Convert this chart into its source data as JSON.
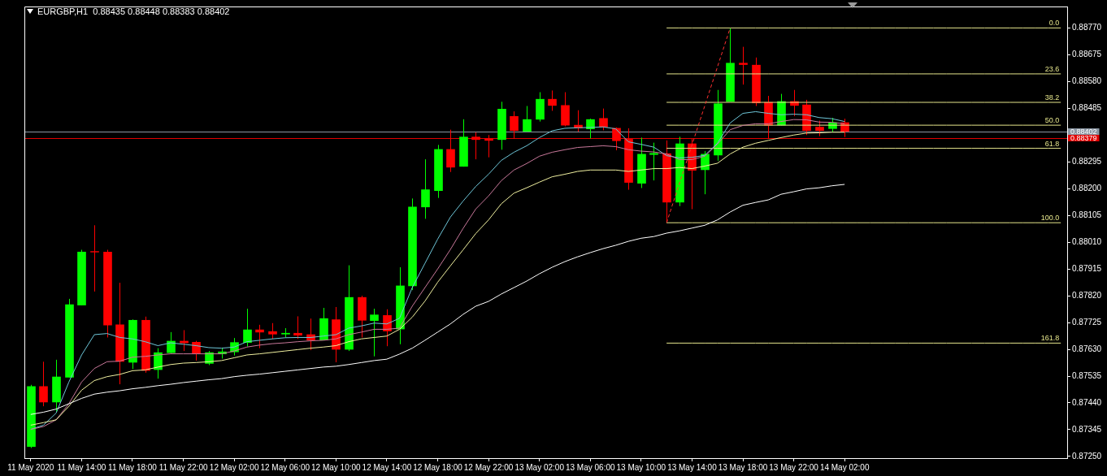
{
  "chart_data": {
    "type": "candlestick",
    "title": "EURGBP,H1  0.88435 0.88448 0.88383 0.88402",
    "categories": [
      "11 May 2020",
      null,
      null,
      null,
      "11 May 14:00",
      null,
      null,
      null,
      "11 May 18:00",
      null,
      null,
      null,
      "11 May 22:00",
      null,
      null,
      null,
      "12 May 02:00",
      null,
      null,
      null,
      "12 May 06:00",
      null,
      null,
      null,
      "12 May 10:00",
      null,
      null,
      null,
      "12 May 14:00",
      null,
      null,
      null,
      "12 May 18:00",
      null,
      null,
      null,
      "12 May 22:00",
      null,
      null,
      null,
      "13 May 02:00",
      null,
      null,
      null,
      "13 May 06:00",
      null,
      null,
      null,
      "13 May 10:00",
      null,
      null,
      null,
      "13 May 14:00",
      null,
      null,
      null,
      "13 May 18:00",
      null,
      null,
      null,
      "13 May 22:00",
      null,
      null,
      null,
      "14 May 02:00",
      null,
      null,
      null,
      null,
      null,
      null,
      null,
      null,
      null,
      null,
      null,
      null,
      null,
      null,
      null,
      null,
      null
    ],
    "ohlc": [
      [
        0.87284,
        0.87504,
        0.8728,
        0.87499
      ],
      [
        0.87499,
        0.87586,
        0.87428,
        0.87442
      ],
      [
        0.87442,
        0.87593,
        0.87409,
        0.87533
      ],
      [
        0.8753,
        0.87809,
        0.8753,
        0.87789
      ],
      [
        0.87786,
        0.87983,
        0.87786,
        0.87976
      ],
      [
        0.87978,
        0.8807,
        0.87835,
        0.87974
      ],
      [
        0.87976,
        0.87983,
        0.87672,
        0.87715
      ],
      [
        0.87718,
        0.87866,
        0.87506,
        0.87586
      ],
      [
        0.87583,
        0.87736,
        0.8756,
        0.87734
      ],
      [
        0.87734,
        0.87746,
        0.87547,
        0.87554
      ],
      [
        0.87557,
        0.87634,
        0.87526,
        0.87619
      ],
      [
        0.87617,
        0.87691,
        0.87617,
        0.8766
      ],
      [
        0.8766,
        0.87698,
        0.87624,
        0.87652
      ],
      [
        0.87656,
        0.8766,
        0.8759,
        0.87614
      ],
      [
        0.87579,
        0.87624,
        0.87574,
        0.87619
      ],
      [
        0.87613,
        0.87636,
        0.87597,
        0.87622
      ],
      [
        0.8762,
        0.8767,
        0.87608,
        0.87655
      ],
      [
        0.87653,
        0.87774,
        0.8764,
        0.877
      ],
      [
        0.877,
        0.87717,
        0.87634,
        0.8769
      ],
      [
        0.87694,
        0.87723,
        0.87667,
        0.87683
      ],
      [
        0.87683,
        0.87705,
        0.87672,
        0.87688
      ],
      [
        0.87688,
        0.87747,
        0.87667,
        0.87679
      ],
      [
        0.87683,
        0.87739,
        0.87627,
        0.87662
      ],
      [
        0.87662,
        0.87777,
        0.87662,
        0.8774
      ],
      [
        0.87736,
        0.8778,
        0.87584,
        0.87629
      ],
      [
        0.87629,
        0.87928,
        0.87624,
        0.87815
      ],
      [
        0.87815,
        0.8782,
        0.87672,
        0.87732
      ],
      [
        0.87731,
        0.87774,
        0.87605,
        0.87753
      ],
      [
        0.87751,
        0.87772,
        0.87641,
        0.87694
      ],
      [
        0.87701,
        0.87921,
        0.87648,
        0.87856
      ],
      [
        0.87854,
        0.88165,
        0.8784,
        0.88136
      ],
      [
        0.88134,
        0.88304,
        0.88093,
        0.88197
      ],
      [
        0.88192,
        0.88355,
        0.88167,
        0.8834
      ],
      [
        0.8834,
        0.88409,
        0.88259,
        0.88275
      ],
      [
        0.88278,
        0.88446,
        0.88278,
        0.88384
      ],
      [
        0.88384,
        0.884,
        0.88304,
        0.88373
      ],
      [
        0.88378,
        0.8839,
        0.88311,
        0.8837
      ],
      [
        0.88373,
        0.88508,
        0.88338,
        0.88483
      ],
      [
        0.88457,
        0.88474,
        0.88378,
        0.88405
      ],
      [
        0.88402,
        0.88493,
        0.88402,
        0.88446
      ],
      [
        0.88445,
        0.88542,
        0.88438,
        0.88518
      ],
      [
        0.88518,
        0.88548,
        0.88476,
        0.88494
      ],
      [
        0.88496,
        0.88542,
        0.88421,
        0.88424
      ],
      [
        0.88426,
        0.88478,
        0.88402,
        0.88414
      ],
      [
        0.88411,
        0.88448,
        0.88378,
        0.88446
      ],
      [
        0.8845,
        0.88484,
        0.88407,
        0.88417
      ],
      [
        0.88415,
        0.88417,
        0.88336,
        0.88369
      ],
      [
        0.88376,
        0.88414,
        0.88196,
        0.88221
      ],
      [
        0.88218,
        0.88381,
        0.88202,
        0.88323
      ],
      [
        0.8832,
        0.88363,
        0.88229,
        0.88326
      ],
      [
        0.88325,
        0.88371,
        0.88079,
        0.88151
      ],
      [
        0.88151,
        0.88384,
        0.88138,
        0.8836
      ],
      [
        0.8836,
        0.88376,
        0.88127,
        0.88264
      ],
      [
        0.88266,
        0.88333,
        0.8818,
        0.88323
      ],
      [
        0.88318,
        0.8855,
        0.88299,
        0.88502
      ],
      [
        0.88508,
        0.8877,
        0.88508,
        0.88646
      ],
      [
        0.88646,
        0.88703,
        0.88569,
        0.88639
      ],
      [
        0.88639,
        0.88665,
        0.88493,
        0.88503
      ],
      [
        0.88507,
        0.88529,
        0.88376,
        0.88424
      ],
      [
        0.88424,
        0.88536,
        0.88424,
        0.8851
      ],
      [
        0.8851,
        0.8855,
        0.88457,
        0.88494
      ],
      [
        0.88498,
        0.88515,
        0.8839,
        0.88405
      ],
      [
        0.88419,
        0.88441,
        0.88386,
        0.88405
      ],
      [
        0.88412,
        0.88451,
        0.884,
        0.88435
      ],
      [
        0.88435,
        0.88448,
        0.88383,
        0.88402
      ],
      null,
      null,
      null,
      null,
      null,
      null,
      null,
      null,
      null,
      null,
      null,
      null,
      null,
      null,
      null,
      null,
      null
    ],
    "colors": [
      "#00ff00",
      "#ff0000",
      "#00ff00",
      "#00ff00",
      "#00ff00",
      "#ff0000",
      "#ff0000",
      "#ff0000",
      "#00ff00",
      "#ff0000",
      "#00ff00",
      "#00ff00",
      "#ff0000",
      "#ff0000",
      "#00ff00",
      "#00ff00",
      "#00ff00",
      "#00ff00",
      "#ff0000",
      "#ff0000",
      "#00ff00",
      "#ff0000",
      "#ff0000",
      "#00ff00",
      "#ff0000",
      "#00ff00",
      "#ff0000",
      "#00ff00",
      "#ff0000",
      "#00ff00",
      "#00ff00",
      "#00ff00",
      "#00ff00",
      "#ff0000",
      "#00ff00",
      "#ff0000",
      "#ff0000",
      "#00ff00",
      "#ff0000",
      "#00ff00",
      "#00ff00",
      "#ff0000",
      "#ff0000",
      "#ff0000",
      "#00ff00",
      "#ff0000",
      "#ff0000",
      "#ff0000",
      "#00ff00",
      "#00ff00",
      "#ff0000",
      "#00ff00",
      "#ff0000",
      "#00ff00",
      "#00ff00",
      "#00ff00",
      "#ff0000",
      "#ff0000",
      "#ff0000",
      "#00ff00",
      "#ff0000",
      "#ff0000",
      "#ff0000",
      "#00ff00",
      "#ff0000",
      null,
      null,
      null,
      null,
      null,
      null,
      null,
      null,
      null,
      null,
      null,
      null,
      null,
      null,
      null,
      null,
      null
    ],
    "series": [
      {
        "type": "line",
        "color": "#ffffff",
        "values": [
          0.87399,
          0.87407,
          0.87418,
          0.87437,
          0.87456,
          0.87471,
          0.87478,
          0.87483,
          0.8749,
          0.87495,
          0.87501,
          0.87506,
          0.87512,
          0.87517,
          0.87522,
          0.87526,
          0.87533,
          0.87538,
          0.87542,
          0.87547,
          0.87552,
          0.87557,
          0.87562,
          0.87567,
          0.8757,
          0.87576,
          0.87583,
          0.8759,
          0.87595,
          0.87613,
          0.87634,
          0.87662,
          0.87691,
          0.8772,
          0.87754,
          0.87783,
          0.878,
          0.87826,
          0.87849,
          0.87872,
          0.87898,
          0.87921,
          0.87941,
          0.87958,
          0.87973,
          0.87987,
          0.87999,
          0.88013,
          0.88024,
          0.8803,
          0.88042,
          0.8805,
          0.8806,
          0.8807,
          0.88089,
          0.88117,
          0.88141,
          0.88151,
          0.8816,
          0.8818,
          0.88189,
          0.88199,
          0.88203,
          0.8821,
          0.88215,
          null,
          null,
          null,
          null,
          null,
          null,
          null,
          null,
          null,
          null,
          null,
          null,
          null,
          null,
          null,
          null,
          null
        ]
      },
      {
        "type": "line",
        "color": "#f0f0a0",
        "values": [
          0.87361,
          0.8737,
          0.8738,
          0.87428,
          0.87485,
          0.87519,
          0.87533,
          0.87541,
          0.87554,
          0.87557,
          0.87567,
          0.87576,
          0.87581,
          0.87583,
          0.87586,
          0.8759,
          0.876,
          0.8761,
          0.87614,
          0.87619,
          0.87624,
          0.87629,
          0.87634,
          0.87638,
          0.87643,
          0.87657,
          0.87667,
          0.87672,
          0.87677,
          0.87701,
          0.87744,
          0.87801,
          0.87868,
          0.87926,
          0.87983,
          0.88041,
          0.88089,
          0.88146,
          0.88184,
          0.88203,
          0.88223,
          0.88242,
          0.88251,
          0.88261,
          0.88266,
          0.88266,
          0.88266,
          0.88261,
          0.88266,
          0.88271,
          0.88271,
          0.88275,
          0.88271,
          0.8828,
          0.8829,
          0.88323,
          0.88347,
          0.88361,
          0.88371,
          0.88381,
          0.8839,
          0.88397,
          0.88398,
          0.884,
          0.884,
          null,
          null,
          null,
          null,
          null,
          null,
          null,
          null,
          null,
          null,
          null,
          null,
          null,
          null,
          null,
          null,
          null
        ]
      },
      {
        "type": "line",
        "color": "#c8789a",
        "values": [
          0.87346,
          0.87356,
          0.8738,
          0.87437,
          0.87514,
          0.87562,
          0.87586,
          0.87588,
          0.87602,
          0.87605,
          0.8761,
          0.87614,
          0.87614,
          0.87614,
          0.87614,
          0.87614,
          0.87624,
          0.87638,
          0.87645,
          0.8765,
          0.87653,
          0.87657,
          0.8766,
          0.87662,
          0.87667,
          0.87682,
          0.87691,
          0.87701,
          0.87701,
          0.87705,
          0.87783,
          0.87849,
          0.87915,
          0.87984,
          0.88059,
          0.88128,
          0.88174,
          0.88228,
          0.88266,
          0.88289,
          0.88315,
          0.88329,
          0.88338,
          0.88346,
          0.88349,
          0.88352,
          0.88349,
          0.88338,
          0.88333,
          0.8833,
          0.88323,
          0.88303,
          0.88303,
          0.88315,
          0.88358,
          0.88409,
          0.88424,
          0.8843,
          0.8843,
          0.88438,
          0.88445,
          0.88444,
          0.88436,
          0.88435,
          0.8843,
          null,
          null,
          null,
          null,
          null,
          null,
          null,
          null,
          null,
          null,
          null,
          null,
          null,
          null,
          null,
          null,
          null
        ]
      },
      {
        "type": "line",
        "color": "#6ec6d8",
        "values": [
          0.87346,
          0.87361,
          0.87404,
          0.87514,
          0.8761,
          0.87682,
          0.87686,
          0.87672,
          0.87667,
          0.87657,
          0.87643,
          0.87653,
          0.87648,
          0.87643,
          0.87636,
          0.87634,
          0.87638,
          0.87657,
          0.87662,
          0.87667,
          0.87671,
          0.87672,
          0.87672,
          0.87677,
          0.87682,
          0.87705,
          0.87713,
          0.87723,
          0.8772,
          0.8774,
          0.87849,
          0.87935,
          0.88021,
          0.88099,
          0.88156,
          0.88208,
          0.88251,
          0.883,
          0.88329,
          0.88352,
          0.88381,
          0.88405,
          0.88414,
          0.88416,
          0.88417,
          0.88419,
          0.88412,
          0.88366,
          0.88357,
          0.88347,
          0.88317,
          0.88309,
          0.88311,
          0.88318,
          0.88361,
          0.88433,
          0.88467,
          0.88473,
          0.88467,
          0.88462,
          0.88464,
          0.88462,
          0.88452,
          0.88448,
          0.88438,
          null,
          null,
          null,
          null,
          null,
          null,
          null,
          null,
          null,
          null,
          null,
          null,
          null,
          null,
          null,
          null,
          null
        ]
      },
      {
        "type": "line",
        "color": "#ff3030",
        "line_style": "dashed",
        "values": [
          null,
          null,
          null,
          null,
          null,
          null,
          null,
          null,
          null,
          null,
          null,
          null,
          null,
          null,
          null,
          null,
          null,
          null,
          null,
          null,
          null,
          null,
          null,
          null,
          null,
          null,
          null,
          null,
          null,
          null,
          null,
          null,
          null,
          null,
          null,
          null,
          null,
          null,
          null,
          null,
          null,
          null,
          null,
          null,
          null,
          null,
          null,
          null,
          null,
          null,
          0.88079,
          null,
          null,
          null,
          null,
          0.8877,
          null,
          null,
          null,
          null,
          null,
          null,
          null,
          null,
          null,
          null,
          null,
          null,
          null,
          null,
          null,
          null,
          null,
          null,
          null,
          null,
          null,
          null,
          null,
          null,
          null,
          null
        ]
      },
      {
        "type": "line",
        "name": "0.0",
        "color": "#e6e68c",
        "values": [
          null,
          null,
          null,
          null,
          null,
          null,
          null,
          null,
          null,
          null,
          null,
          null,
          null,
          null,
          null,
          null,
          null,
          null,
          null,
          null,
          null,
          null,
          null,
          null,
          null,
          null,
          null,
          null,
          null,
          null,
          null,
          null,
          null,
          null,
          null,
          null,
          null,
          null,
          null,
          null,
          null,
          null,
          null,
          null,
          null,
          null,
          null,
          null,
          null,
          null,
          0.8877,
          0.8877,
          0.8877,
          0.8877,
          0.8877,
          0.8877,
          0.8877,
          0.8877,
          0.8877,
          0.8877,
          0.8877,
          0.8877,
          0.8877,
          0.8877,
          0.8877,
          0.8877,
          0.8877,
          0.8877,
          0.8877,
          0.8877,
          0.8877,
          0.8877,
          0.8877,
          0.8877,
          0.8877,
          0.8877,
          0.8877,
          0.8877,
          0.8877,
          0.8877,
          0.8877,
          0.8877
        ]
      },
      {
        "type": "line",
        "name": "23.6",
        "color": "#e6e68c",
        "values": [
          null,
          null,
          null,
          null,
          null,
          null,
          null,
          null,
          null,
          null,
          null,
          null,
          null,
          null,
          null,
          null,
          null,
          null,
          null,
          null,
          null,
          null,
          null,
          null,
          null,
          null,
          null,
          null,
          null,
          null,
          null,
          null,
          null,
          null,
          null,
          null,
          null,
          null,
          null,
          null,
          null,
          null,
          null,
          null,
          null,
          null,
          null,
          null,
          null,
          null,
          0.88607,
          0.88607,
          0.88607,
          0.88607,
          0.88607,
          0.88607,
          0.88607,
          0.88607,
          0.88607,
          0.88607,
          0.88607,
          0.88607,
          0.88607,
          0.88607,
          0.88607,
          0.88607,
          0.88607,
          0.88607,
          0.88607,
          0.88607,
          0.88607,
          0.88607,
          0.88607,
          0.88607,
          0.88607,
          0.88607,
          0.88607,
          0.88607,
          0.88607,
          0.88607,
          0.88607,
          0.88607
        ]
      },
      {
        "type": "line",
        "name": "38.2",
        "color": "#e6e68c",
        "values": [
          null,
          null,
          null,
          null,
          null,
          null,
          null,
          null,
          null,
          null,
          null,
          null,
          null,
          null,
          null,
          null,
          null,
          null,
          null,
          null,
          null,
          null,
          null,
          null,
          null,
          null,
          null,
          null,
          null,
          null,
          null,
          null,
          null,
          null,
          null,
          null,
          null,
          null,
          null,
          null,
          null,
          null,
          null,
          null,
          null,
          null,
          null,
          null,
          null,
          null,
          0.88506,
          0.88506,
          0.88506,
          0.88506,
          0.88506,
          0.88506,
          0.88506,
          0.88506,
          0.88506,
          0.88506,
          0.88506,
          0.88506,
          0.88506,
          0.88506,
          0.88506,
          0.88506,
          0.88506,
          0.88506,
          0.88506,
          0.88506,
          0.88506,
          0.88506,
          0.88506,
          0.88506,
          0.88506,
          0.88506,
          0.88506,
          0.88506,
          0.88506,
          0.88506,
          0.88506,
          0.88506
        ]
      },
      {
        "type": "line",
        "name": "50.0",
        "color": "#e6e68c",
        "values": [
          null,
          null,
          null,
          null,
          null,
          null,
          null,
          null,
          null,
          null,
          null,
          null,
          null,
          null,
          null,
          null,
          null,
          null,
          null,
          null,
          null,
          null,
          null,
          null,
          null,
          null,
          null,
          null,
          null,
          null,
          null,
          null,
          null,
          null,
          null,
          null,
          null,
          null,
          null,
          null,
          null,
          null,
          null,
          null,
          null,
          null,
          null,
          null,
          null,
          null,
          0.88425,
          0.88425,
          0.88425,
          0.88425,
          0.88425,
          0.88425,
          0.88425,
          0.88425,
          0.88425,
          0.88425,
          0.88425,
          0.88425,
          0.88425,
          0.88425,
          0.88425,
          0.88425,
          0.88425,
          0.88425,
          0.88425,
          0.88425,
          0.88425,
          0.88425,
          0.88425,
          0.88425,
          0.88425,
          0.88425,
          0.88425,
          0.88425,
          0.88425,
          0.88425,
          0.88425,
          0.88425
        ]
      },
      {
        "type": "line",
        "name": "61.8",
        "color": "#e6e68c",
        "values": [
          null,
          null,
          null,
          null,
          null,
          null,
          null,
          null,
          null,
          null,
          null,
          null,
          null,
          null,
          null,
          null,
          null,
          null,
          null,
          null,
          null,
          null,
          null,
          null,
          null,
          null,
          null,
          null,
          null,
          null,
          null,
          null,
          null,
          null,
          null,
          null,
          null,
          null,
          null,
          null,
          null,
          null,
          null,
          null,
          null,
          null,
          null,
          null,
          null,
          null,
          0.88343,
          0.88343,
          0.88343,
          0.88343,
          0.88343,
          0.88343,
          0.88343,
          0.88343,
          0.88343,
          0.88343,
          0.88343,
          0.88343,
          0.88343,
          0.88343,
          0.88343,
          0.88343,
          0.88343,
          0.88343,
          0.88343,
          0.88343,
          0.88343,
          0.88343,
          0.88343,
          0.88343,
          0.88343,
          0.88343,
          0.88343,
          0.88343,
          0.88343,
          0.88343,
          0.88343,
          0.88343
        ]
      },
      {
        "type": "line",
        "name": "100.0",
        "color": "#e6e68c",
        "values": [
          null,
          null,
          null,
          null,
          null,
          null,
          null,
          null,
          null,
          null,
          null,
          null,
          null,
          null,
          null,
          null,
          null,
          null,
          null,
          null,
          null,
          null,
          null,
          null,
          null,
          null,
          null,
          null,
          null,
          null,
          null,
          null,
          null,
          null,
          null,
          null,
          null,
          null,
          null,
          null,
          null,
          null,
          null,
          null,
          null,
          null,
          null,
          null,
          null,
          null,
          0.88079,
          0.88079,
          0.88079,
          0.88079,
          0.88079,
          0.88079,
          0.88079,
          0.88079,
          0.88079,
          0.88079,
          0.88079,
          0.88079,
          0.88079,
          0.88079,
          0.88079,
          0.88079,
          0.88079,
          0.88079,
          0.88079,
          0.88079,
          0.88079,
          0.88079,
          0.88079,
          0.88079,
          0.88079,
          0.88079,
          0.88079,
          0.88079,
          0.88079,
          0.88079,
          0.88079,
          0.88079
        ]
      },
      {
        "type": "line",
        "name": "161.8",
        "color": "#e6e68c",
        "values": [
          null,
          null,
          null,
          null,
          null,
          null,
          null,
          null,
          null,
          null,
          null,
          null,
          null,
          null,
          null,
          null,
          null,
          null,
          null,
          null,
          null,
          null,
          null,
          null,
          null,
          null,
          null,
          null,
          null,
          null,
          null,
          null,
          null,
          null,
          null,
          null,
          null,
          null,
          null,
          null,
          null,
          null,
          null,
          null,
          null,
          null,
          null,
          null,
          null,
          null,
          0.87652,
          0.87652,
          0.87652,
          0.87652,
          0.87652,
          0.87652,
          0.87652,
          0.87652,
          0.87652,
          0.87652,
          0.87652,
          0.87652,
          0.87652,
          0.87652,
          0.87652,
          0.87652,
          0.87652,
          0.87652,
          0.87652,
          0.87652,
          0.87652,
          0.87652,
          0.87652,
          0.87652,
          0.87652,
          0.87652,
          0.87652,
          0.87652,
          0.87652,
          0.87652,
          0.87652,
          0.87652
        ]
      }
    ],
    "ref_lines": [
      {
        "axis": "y",
        "value": 0.88402,
        "label": "0.88402",
        "color": "#8a96a3"
      },
      {
        "axis": "y",
        "value": 0.88379,
        "label": "0.88379",
        "color": "#e00000"
      }
    ],
    "ylim": [
      0.87244,
      0.88846
    ],
    "yticks": [
      {
        "value": 0.8877,
        "label": "0.88770"
      },
      {
        "value": 0.88675,
        "label": "0.88675"
      },
      {
        "value": 0.8858,
        "label": "0.88580"
      },
      {
        "value": 0.88485,
        "label": "0.88485"
      },
      {
        "value": 0.88295,
        "label": "0.88295"
      },
      {
        "value": 0.882,
        "label": "0.88200"
      },
      {
        "value": 0.88105,
        "label": "0.88105"
      },
      {
        "value": 0.8801,
        "label": "0.88010"
      },
      {
        "value": 0.87915,
        "label": "0.87915"
      },
      {
        "value": 0.8782,
        "label": "0.87820"
      },
      {
        "value": 0.87725,
        "label": "0.87725"
      },
      {
        "value": 0.8763,
        "label": "0.87630"
      },
      {
        "value": 0.87535,
        "label": "0.87535"
      },
      {
        "value": 0.8744,
        "label": "0.87440"
      },
      {
        "value": 0.87345,
        "label": "0.87345"
      },
      {
        "value": 0.8725,
        "label": "0.87250"
      }
    ]
  }
}
